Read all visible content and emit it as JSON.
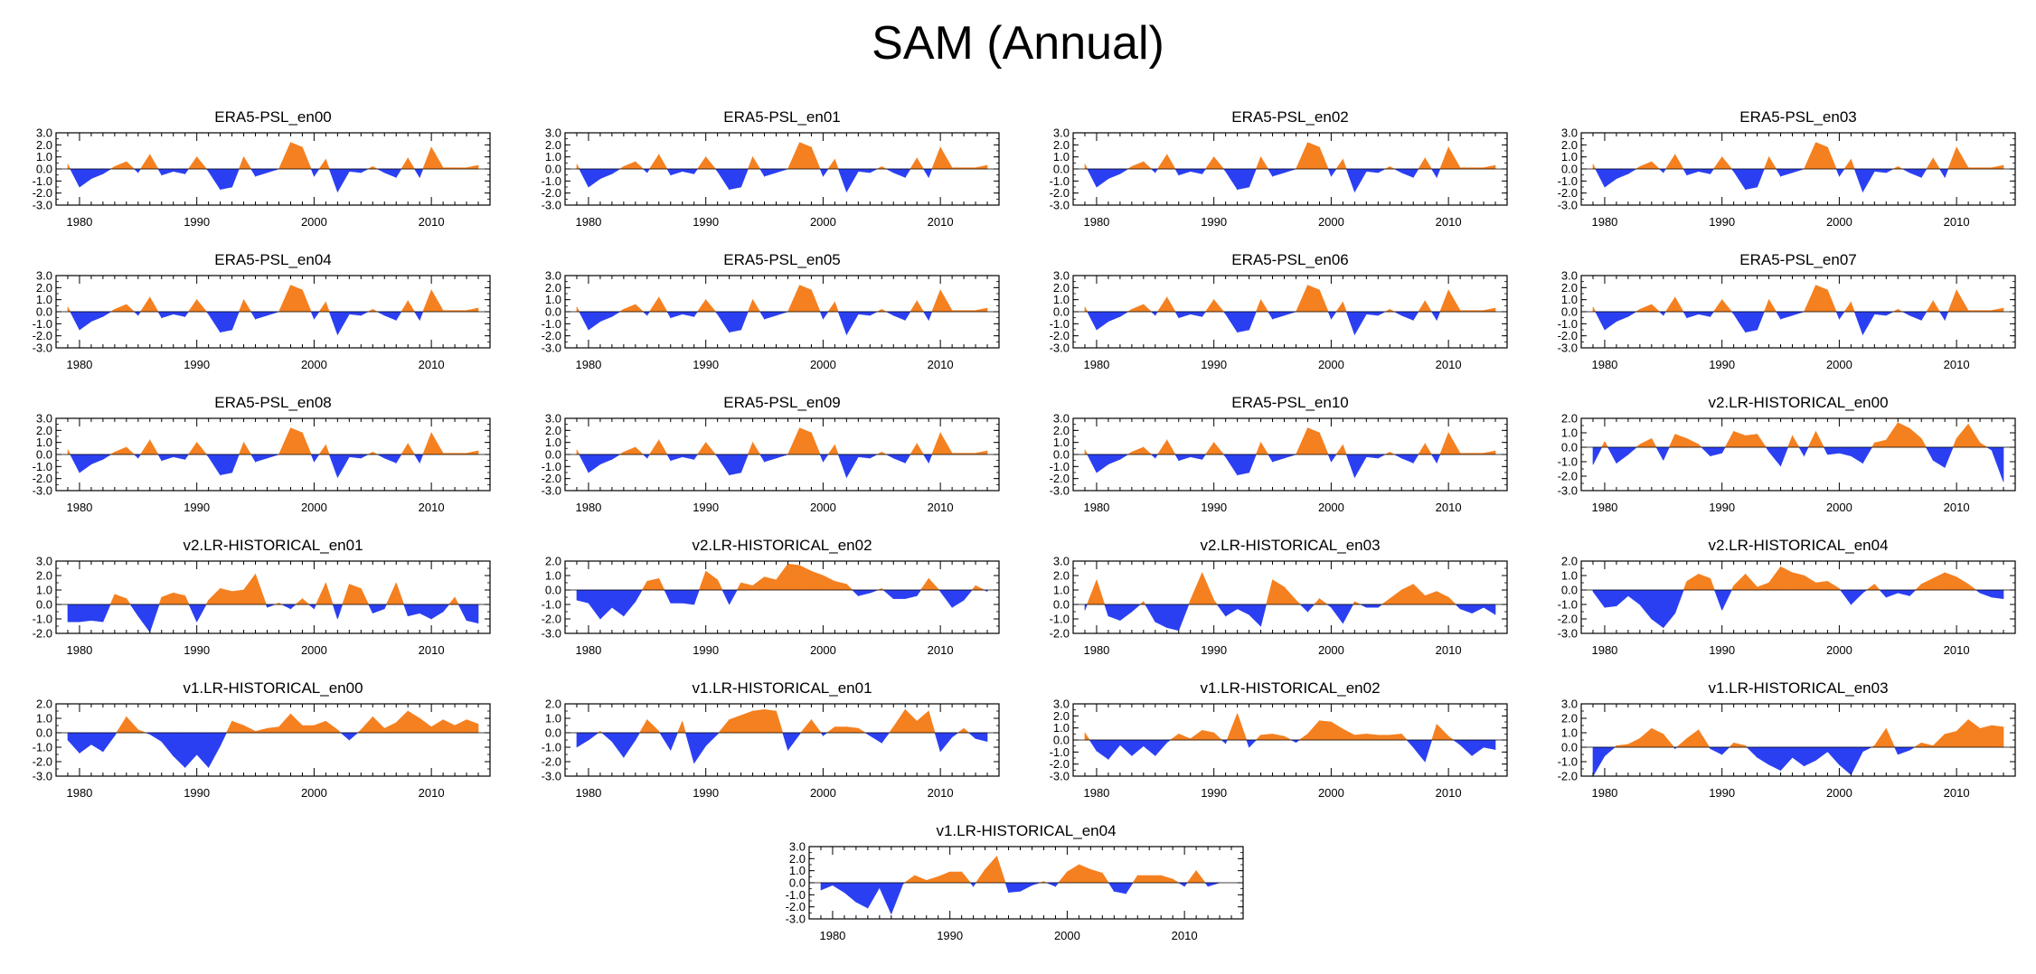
{
  "title": "SAM (Annual)",
  "colors": {
    "positive": "#f58020",
    "negative": "#2b3ff2"
  },
  "chart_data": [
    {
      "type": "area",
      "title": "ERA5-PSL_en00",
      "x_start": 1979,
      "ylim": [
        -3,
        3
      ],
      "yticks": [
        "3.0",
        "2.0",
        "1.0",
        "0.0",
        "-1.0",
        "-2.0",
        "-3.0"
      ],
      "xticks": [
        "1980",
        "1990",
        "2000",
        "2010"
      ],
      "values": [
        0.4,
        -1.5,
        -0.8,
        -0.4,
        0.2,
        0.6,
        -0.3,
        1.2,
        -0.5,
        -0.2,
        -0.4,
        1.0,
        -0.2,
        -1.7,
        -1.5,
        1.0,
        -0.6,
        -0.3,
        0.0,
        2.2,
        1.8,
        -0.6,
        0.8,
        -1.9,
        -0.2,
        -0.3,
        0.2,
        -0.3,
        -0.7,
        0.9,
        -0.7,
        1.8,
        0.1,
        0.1,
        0.1,
        0.3
      ]
    },
    {
      "type": "area",
      "title": "ERA5-PSL_en01",
      "x_start": 1979,
      "ylim": [
        -3,
        3
      ],
      "yticks": [
        "3.0",
        "2.0",
        "1.0",
        "0.0",
        "-1.0",
        "-2.0",
        "-3.0"
      ],
      "xticks": [
        "1980",
        "1990",
        "2000",
        "2010"
      ],
      "values": [
        0.4,
        -1.5,
        -0.8,
        -0.4,
        0.2,
        0.6,
        -0.3,
        1.2,
        -0.5,
        -0.2,
        -0.4,
        1.0,
        -0.2,
        -1.7,
        -1.5,
        1.0,
        -0.6,
        -0.3,
        0.0,
        2.2,
        1.8,
        -0.6,
        0.8,
        -1.9,
        -0.2,
        -0.3,
        0.2,
        -0.3,
        -0.7,
        0.9,
        -0.7,
        1.8,
        0.1,
        0.1,
        0.1,
        0.3
      ]
    },
    {
      "type": "area",
      "title": "ERA5-PSL_en02",
      "x_start": 1979,
      "ylim": [
        -3,
        3
      ],
      "yticks": [
        "3.0",
        "2.0",
        "1.0",
        "0.0",
        "-1.0",
        "-2.0",
        "-3.0"
      ],
      "xticks": [
        "1980",
        "1990",
        "2000",
        "2010"
      ],
      "values": [
        0.4,
        -1.5,
        -0.8,
        -0.4,
        0.2,
        0.6,
        -0.3,
        1.2,
        -0.5,
        -0.2,
        -0.4,
        1.0,
        -0.2,
        -1.7,
        -1.5,
        1.0,
        -0.6,
        -0.3,
        0.0,
        2.2,
        1.8,
        -0.6,
        0.8,
        -1.9,
        -0.2,
        -0.3,
        0.2,
        -0.3,
        -0.7,
        0.9,
        -0.7,
        1.8,
        0.1,
        0.1,
        0.1,
        0.3
      ]
    },
    {
      "type": "area",
      "title": "ERA5-PSL_en03",
      "x_start": 1979,
      "ylim": [
        -3,
        3
      ],
      "yticks": [
        "3.0",
        "2.0",
        "1.0",
        "0.0",
        "-1.0",
        "-2.0",
        "-3.0"
      ],
      "xticks": [
        "1980",
        "1990",
        "2000",
        "2010"
      ],
      "values": [
        0.4,
        -1.5,
        -0.8,
        -0.4,
        0.2,
        0.6,
        -0.3,
        1.2,
        -0.5,
        -0.2,
        -0.4,
        1.0,
        -0.2,
        -1.7,
        -1.5,
        1.0,
        -0.6,
        -0.3,
        0.0,
        2.2,
        1.8,
        -0.6,
        0.8,
        -1.9,
        -0.2,
        -0.3,
        0.2,
        -0.3,
        -0.7,
        0.9,
        -0.7,
        1.8,
        0.1,
        0.1,
        0.1,
        0.3
      ]
    },
    {
      "type": "area",
      "title": "ERA5-PSL_en04",
      "x_start": 1979,
      "ylim": [
        -3,
        3
      ],
      "yticks": [
        "3.0",
        "2.0",
        "1.0",
        "0.0",
        "-1.0",
        "-2.0",
        "-3.0"
      ],
      "xticks": [
        "1980",
        "1990",
        "2000",
        "2010"
      ],
      "values": [
        0.4,
        -1.5,
        -0.8,
        -0.4,
        0.2,
        0.6,
        -0.3,
        1.2,
        -0.5,
        -0.2,
        -0.4,
        1.0,
        -0.2,
        -1.7,
        -1.5,
        1.0,
        -0.6,
        -0.3,
        0.0,
        2.2,
        1.8,
        -0.6,
        0.8,
        -1.9,
        -0.2,
        -0.3,
        0.2,
        -0.3,
        -0.7,
        0.9,
        -0.7,
        1.8,
        0.1,
        0.1,
        0.1,
        0.3
      ]
    },
    {
      "type": "area",
      "title": "ERA5-PSL_en05",
      "x_start": 1979,
      "ylim": [
        -3,
        3
      ],
      "yticks": [
        "3.0",
        "2.0",
        "1.0",
        "0.0",
        "-1.0",
        "-2.0",
        "-3.0"
      ],
      "xticks": [
        "1980",
        "1990",
        "2000",
        "2010"
      ],
      "values": [
        0.4,
        -1.5,
        -0.8,
        -0.4,
        0.2,
        0.6,
        -0.3,
        1.2,
        -0.5,
        -0.2,
        -0.4,
        1.0,
        -0.2,
        -1.7,
        -1.5,
        1.0,
        -0.6,
        -0.3,
        0.0,
        2.2,
        1.8,
        -0.6,
        0.8,
        -1.9,
        -0.2,
        -0.3,
        0.2,
        -0.3,
        -0.7,
        0.9,
        -0.7,
        1.8,
        0.1,
        0.1,
        0.1,
        0.3
      ]
    },
    {
      "type": "area",
      "title": "ERA5-PSL_en06",
      "x_start": 1979,
      "ylim": [
        -3,
        3
      ],
      "yticks": [
        "3.0",
        "2.0",
        "1.0",
        "0.0",
        "-1.0",
        "-2.0",
        "-3.0"
      ],
      "xticks": [
        "1980",
        "1990",
        "2000",
        "2010"
      ],
      "values": [
        0.4,
        -1.5,
        -0.8,
        -0.4,
        0.2,
        0.6,
        -0.3,
        1.2,
        -0.5,
        -0.2,
        -0.4,
        1.0,
        -0.2,
        -1.7,
        -1.5,
        1.0,
        -0.6,
        -0.3,
        0.0,
        2.2,
        1.8,
        -0.6,
        0.8,
        -1.9,
        -0.2,
        -0.3,
        0.2,
        -0.3,
        -0.7,
        0.9,
        -0.7,
        1.8,
        0.1,
        0.1,
        0.1,
        0.3
      ]
    },
    {
      "type": "area",
      "title": "ERA5-PSL_en07",
      "x_start": 1979,
      "ylim": [
        -3,
        3
      ],
      "yticks": [
        "3.0",
        "2.0",
        "1.0",
        "0.0",
        "-1.0",
        "-2.0",
        "-3.0"
      ],
      "xticks": [
        "1980",
        "1990",
        "2000",
        "2010"
      ],
      "values": [
        0.4,
        -1.5,
        -0.8,
        -0.4,
        0.2,
        0.6,
        -0.3,
        1.2,
        -0.5,
        -0.2,
        -0.4,
        1.0,
        -0.2,
        -1.7,
        -1.5,
        1.0,
        -0.6,
        -0.3,
        0.0,
        2.2,
        1.8,
        -0.6,
        0.8,
        -1.9,
        -0.2,
        -0.3,
        0.2,
        -0.3,
        -0.7,
        0.9,
        -0.7,
        1.8,
        0.1,
        0.1,
        0.1,
        0.3
      ]
    },
    {
      "type": "area",
      "title": "ERA5-PSL_en08",
      "x_start": 1979,
      "ylim": [
        -3,
        3
      ],
      "yticks": [
        "3.0",
        "2.0",
        "1.0",
        "0.0",
        "-1.0",
        "-2.0",
        "-3.0"
      ],
      "xticks": [
        "1980",
        "1990",
        "2000",
        "2010"
      ],
      "values": [
        0.4,
        -1.5,
        -0.8,
        -0.4,
        0.2,
        0.6,
        -0.3,
        1.2,
        -0.5,
        -0.2,
        -0.4,
        1.0,
        -0.2,
        -1.7,
        -1.5,
        1.0,
        -0.6,
        -0.3,
        0.0,
        2.2,
        1.8,
        -0.6,
        0.8,
        -1.9,
        -0.2,
        -0.3,
        0.2,
        -0.3,
        -0.7,
        0.9,
        -0.7,
        1.8,
        0.1,
        0.1,
        0.1,
        0.3
      ]
    },
    {
      "type": "area",
      "title": "ERA5-PSL_en09",
      "x_start": 1979,
      "ylim": [
        -3,
        3
      ],
      "yticks": [
        "3.0",
        "2.0",
        "1.0",
        "0.0",
        "-1.0",
        "-2.0",
        "-3.0"
      ],
      "xticks": [
        "1980",
        "1990",
        "2000",
        "2010"
      ],
      "values": [
        0.4,
        -1.5,
        -0.8,
        -0.4,
        0.2,
        0.6,
        -0.3,
        1.2,
        -0.5,
        -0.2,
        -0.4,
        1.0,
        -0.2,
        -1.7,
        -1.5,
        1.0,
        -0.6,
        -0.3,
        0.0,
        2.2,
        1.8,
        -0.6,
        0.8,
        -1.9,
        -0.2,
        -0.3,
        0.2,
        -0.3,
        -0.7,
        0.9,
        -0.7,
        1.8,
        0.1,
        0.1,
        0.1,
        0.3
      ]
    },
    {
      "type": "area",
      "title": "ERA5-PSL_en10",
      "x_start": 1979,
      "ylim": [
        -3,
        3
      ],
      "yticks": [
        "3.0",
        "2.0",
        "1.0",
        "0.0",
        "-1.0",
        "-2.0",
        "-3.0"
      ],
      "xticks": [
        "1980",
        "1990",
        "2000",
        "2010"
      ],
      "values": [
        0.4,
        -1.5,
        -0.8,
        -0.4,
        0.2,
        0.6,
        -0.3,
        1.2,
        -0.5,
        -0.2,
        -0.4,
        1.0,
        -0.2,
        -1.7,
        -1.5,
        1.0,
        -0.6,
        -0.3,
        0.0,
        2.2,
        1.8,
        -0.6,
        0.8,
        -1.9,
        -0.2,
        -0.3,
        0.2,
        -0.3,
        -0.7,
        0.9,
        -0.7,
        1.8,
        0.1,
        0.1,
        0.1,
        0.3
      ]
    },
    {
      "type": "area",
      "title": "v2.LR-HISTORICAL_en00",
      "x_start": 1979,
      "ylim": [
        -3,
        2
      ],
      "yticks": [
        "2.0",
        "1.0",
        "0.0",
        "-1.0",
        "-2.0",
        "-3.0"
      ],
      "xticks": [
        "1980",
        "1990",
        "2000",
        "2010"
      ],
      "values": [
        -1.2,
        0.4,
        -1.1,
        -0.5,
        0.2,
        0.6,
        -0.9,
        0.9,
        0.6,
        0.2,
        -0.6,
        -0.4,
        1.1,
        0.8,
        0.9,
        -0.3,
        -1.3,
        0.8,
        -0.6,
        1.1,
        -0.5,
        -0.4,
        -0.6,
        -1.1,
        0.3,
        0.5,
        1.7,
        1.3,
        0.6,
        -0.9,
        -1.4,
        0.6,
        1.6,
        0.3,
        -0.2,
        -2.4
      ]
    },
    {
      "type": "area",
      "title": "v2.LR-HISTORICAL_en01",
      "x_start": 1979,
      "ylim": [
        -2,
        3
      ],
      "yticks": [
        "3.0",
        "2.0",
        "1.0",
        "0.0",
        "-1.0",
        "-2.0"
      ],
      "xticks": [
        "1980",
        "1990",
        "2000",
        "2010"
      ],
      "values": [
        -1.2,
        -1.2,
        -1.1,
        -1.2,
        0.7,
        0.4,
        -0.8,
        -1.9,
        0.5,
        0.8,
        0.6,
        -1.2,
        0.3,
        1.1,
        0.9,
        1.0,
        2.1,
        -0.2,
        0.1,
        -0.3,
        0.4,
        -0.3,
        1.5,
        -1.0,
        1.4,
        1.1,
        -0.6,
        -0.3,
        1.5,
        -0.8,
        -0.6,
        -1.0,
        -0.5,
        0.5,
        -1.1,
        -1.3
      ]
    },
    {
      "type": "area",
      "title": "v2.LR-HISTORICAL_en02",
      "x_start": 1979,
      "ylim": [
        -3,
        2
      ],
      "yticks": [
        "2.0",
        "1.0",
        "0.0",
        "-1.0",
        "-2.0",
        "-3.0"
      ],
      "xticks": [
        "1980",
        "1990",
        "2000",
        "2010"
      ],
      "values": [
        -0.7,
        -0.9,
        -2.0,
        -1.2,
        -1.8,
        -0.8,
        0.6,
        0.8,
        -0.9,
        -0.9,
        -1.0,
        1.3,
        0.7,
        -1.0,
        0.5,
        0.3,
        0.9,
        0.7,
        1.8,
        1.7,
        1.3,
        1.0,
        0.6,
        0.4,
        -0.4,
        -0.2,
        0.1,
        -0.6,
        -0.6,
        -0.4,
        0.8,
        -0.1,
        -1.2,
        -0.7,
        0.3,
        -0.1
      ]
    },
    {
      "type": "area",
      "title": "v2.LR-HISTORICAL_en03",
      "x_start": 1979,
      "ylim": [
        -2,
        3
      ],
      "yticks": [
        "3.0",
        "2.0",
        "1.0",
        "0.0",
        "-1.0",
        "-2.0"
      ],
      "xticks": [
        "1980",
        "1990",
        "2000",
        "2010"
      ],
      "values": [
        -0.4,
        1.7,
        -0.8,
        -1.1,
        -0.5,
        0.2,
        -1.2,
        -1.6,
        -1.8,
        0.3,
        2.2,
        0.3,
        -0.8,
        -0.3,
        -0.7,
        -1.5,
        1.7,
        1.2,
        0.3,
        -0.5,
        0.4,
        -0.2,
        -1.3,
        0.2,
        -0.2,
        -0.2,
        0.4,
        1.0,
        1.4,
        0.6,
        0.9,
        0.5,
        -0.3,
        -0.6,
        -0.2,
        -0.7
      ]
    },
    {
      "type": "area",
      "title": "v2.LR-HISTORICAL_en04",
      "x_start": 1979,
      "ylim": [
        -3,
        2
      ],
      "yticks": [
        "2.0",
        "1.0",
        "0.0",
        "-1.0",
        "-2.0",
        "-3.0"
      ],
      "xticks": [
        "1980",
        "1990",
        "2000",
        "2010"
      ],
      "values": [
        -0.1,
        -1.2,
        -1.1,
        -0.4,
        -1.0,
        -2.0,
        -2.6,
        -1.6,
        0.6,
        1.1,
        0.8,
        -1.4,
        0.3,
        1.1,
        0.2,
        0.5,
        1.6,
        1.2,
        1.0,
        0.5,
        0.6,
        0.1,
        -1.0,
        -0.2,
        0.4,
        -0.5,
        -0.2,
        -0.4,
        0.4,
        0.8,
        1.2,
        0.9,
        0.4,
        -0.2,
        -0.5,
        -0.6
      ]
    },
    {
      "type": "area",
      "title": "v1.LR-HISTORICAL_en00",
      "x_start": 1979,
      "ylim": [
        -3,
        2
      ],
      "yticks": [
        "2.0",
        "1.0",
        "0.0",
        "-1.0",
        "-2.0",
        "-3.0"
      ],
      "xticks": [
        "1980",
        "1990",
        "2000",
        "2010"
      ],
      "values": [
        -0.5,
        -1.4,
        -0.8,
        -1.3,
        -0.2,
        1.1,
        0.2,
        -0.1,
        -0.6,
        -1.6,
        -2.4,
        -1.5,
        -2.4,
        -0.9,
        0.8,
        0.5,
        0.1,
        0.3,
        0.4,
        1.3,
        0.5,
        0.5,
        0.8,
        0.2,
        -0.5,
        0.2,
        1.1,
        0.3,
        0.7,
        1.5,
        1.0,
        0.4,
        0.9,
        0.5,
        0.9,
        0.6
      ]
    },
    {
      "type": "area",
      "title": "v1.LR-HISTORICAL_en01",
      "x_start": 1979,
      "ylim": [
        -3,
        2
      ],
      "yticks": [
        "2.0",
        "1.0",
        "0.0",
        "-1.0",
        "-2.0",
        "-3.0"
      ],
      "xticks": [
        "1980",
        "1990",
        "2000",
        "2010"
      ],
      "values": [
        -1.0,
        -0.5,
        0.1,
        -0.6,
        -1.7,
        -0.5,
        0.9,
        0.1,
        -1.2,
        0.8,
        -2.1,
        -0.9,
        -0.1,
        0.9,
        1.2,
        1.5,
        1.6,
        1.5,
        -1.2,
        -0.1,
        0.9,
        -0.2,
        0.4,
        0.4,
        0.3,
        -0.2,
        -0.7,
        0.4,
        1.6,
        0.8,
        1.5,
        -1.3,
        -0.3,
        0.3,
        -0.4,
        -0.6
      ]
    },
    {
      "type": "area",
      "title": "v1.LR-HISTORICAL_en02",
      "x_start": 1979,
      "ylim": [
        -3,
        3
      ],
      "yticks": [
        "3.0",
        "2.0",
        "1.0",
        "0.0",
        "-1.0",
        "-2.0",
        "-3.0"
      ],
      "xticks": [
        "1980",
        "1990",
        "2000",
        "2010"
      ],
      "values": [
        0.6,
        -0.9,
        -1.6,
        -0.4,
        -1.3,
        -0.5,
        -1.3,
        -0.2,
        0.5,
        0.1,
        0.8,
        0.6,
        -0.3,
        2.2,
        -0.6,
        0.4,
        0.5,
        0.3,
        -0.2,
        0.5,
        1.6,
        1.5,
        0.9,
        0.4,
        0.5,
        0.4,
        0.4,
        0.5,
        -0.6,
        -1.8,
        1.3,
        0.3,
        -0.4,
        -1.3,
        -0.6,
        -0.8
      ]
    },
    {
      "type": "area",
      "title": "v1.LR-HISTORICAL_en03",
      "x_start": 1979,
      "ylim": [
        -2,
        3
      ],
      "yticks": [
        "3.0",
        "2.0",
        "1.0",
        "0.0",
        "-1.0",
        "-2.0"
      ],
      "xticks": [
        "1980",
        "1990",
        "2000",
        "2010"
      ],
      "values": [
        -2.0,
        -0.6,
        0.1,
        0.2,
        0.6,
        1.3,
        0.9,
        -0.1,
        0.6,
        1.2,
        -0.1,
        -0.5,
        0.3,
        0.1,
        -0.7,
        -1.2,
        -1.6,
        -0.7,
        -1.3,
        -0.9,
        -0.3,
        -1.2,
        -1.9,
        -0.3,
        0.1,
        1.3,
        -0.5,
        -0.2,
        0.3,
        0.1,
        0.9,
        1.1,
        1.9,
        1.3,
        1.5,
        1.4
      ]
    },
    {
      "type": "area",
      "title": "v1.LR-HISTORICAL_en04",
      "x_start": 1979,
      "ylim": [
        -3,
        3
      ],
      "yticks": [
        "3.0",
        "2.0",
        "1.0",
        "0.0",
        "-1.0",
        "-2.0",
        "-3.0"
      ],
      "xticks": [
        "1980",
        "1990",
        "2000",
        "2010"
      ],
      "values": [
        -0.6,
        -0.2,
        -0.8,
        -1.6,
        -2.1,
        -0.4,
        -2.6,
        -0.1,
        0.6,
        0.2,
        0.5,
        0.9,
        0.9,
        -0.3,
        1.1,
        2.2,
        -0.8,
        -0.7,
        -0.2,
        0.1,
        -0.3,
        0.9,
        1.5,
        1.1,
        0.8,
        -0.7,
        -0.9,
        0.6,
        0.6,
        0.6,
        0.3,
        -0.3,
        1.0,
        -0.3,
        0.0,
        0.0
      ]
    }
  ]
}
